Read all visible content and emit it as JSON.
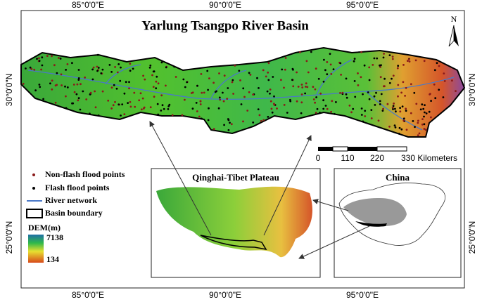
{
  "map": {
    "title": "Yarlung Tsangpo River Basin",
    "north": "N",
    "lon_labels": [
      "85°0'0\"E",
      "90°0'0\"E",
      "95°0'0\"E"
    ],
    "lat_labels": [
      "30°0'0\"N",
      "25°0'0\"N"
    ],
    "scale_bar": [
      "0",
      "110",
      "220",
      "330 Kilometers"
    ],
    "legend": {
      "items": [
        "Non-flash flood points",
        "Flash flood points",
        "River network",
        "Basin boundary"
      ],
      "dem_title": "DEM(m)",
      "dem_max": "7138",
      "dem_min": "134"
    },
    "insets": [
      "Qinghai-Tibet Plateau",
      "China"
    ]
  }
}
